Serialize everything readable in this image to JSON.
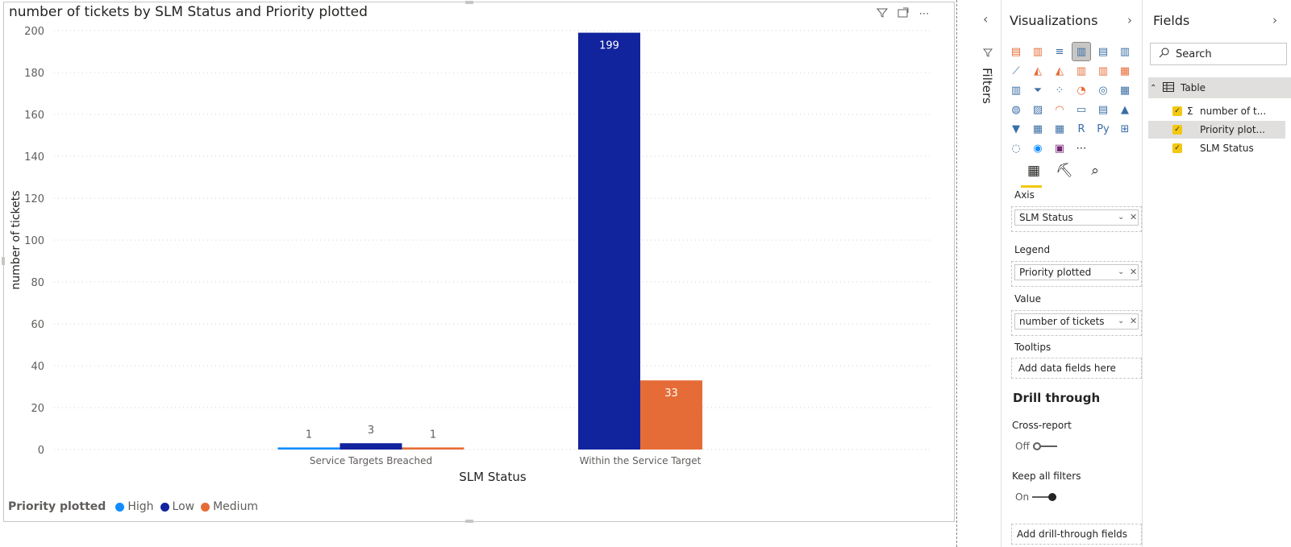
{
  "visual": {
    "title": "number of tickets by SLM Status and Priority plotted",
    "header_icons": [
      "filter-icon",
      "focus-mode-icon",
      "more-options-icon"
    ],
    "more_glyph": "⋯"
  },
  "chart_data": {
    "type": "bar",
    "title": "number of tickets by SLM Status and Priority plotted",
    "xlabel": "SLM Status",
    "ylabel": "number of tickets",
    "ylim": [
      0,
      200
    ],
    "yticks": [
      0,
      20,
      40,
      60,
      80,
      100,
      120,
      140,
      160,
      180,
      200
    ],
    "grid": true,
    "categories": [
      "Service Targets Breached",
      "Within the Service Target"
    ],
    "series": [
      {
        "name": "High",
        "color": "#118dff",
        "values": [
          1,
          0
        ]
      },
      {
        "name": "Low",
        "color": "#12239e",
        "values": [
          3,
          199
        ]
      },
      {
        "name": "Medium",
        "color": "#e66c37",
        "values": [
          1,
          33
        ]
      }
    ],
    "data_labels": [
      {
        "series": "High",
        "category": "Service Targets Breached",
        "label": "1"
      },
      {
        "series": "Low",
        "category": "Service Targets Breached",
        "label": "3"
      },
      {
        "series": "Medium",
        "category": "Service Targets Breached",
        "label": "1"
      },
      {
        "series": "Low",
        "category": "Within the Service Target",
        "label": "199"
      },
      {
        "series": "Medium",
        "category": "Within the Service Target",
        "label": "33"
      }
    ],
    "legend_title": "Priority plotted",
    "legend_position": "bottom-left"
  },
  "filters": {
    "label": "Filters",
    "collapse_glyph": "‹"
  },
  "visualizations": {
    "title": "Visualizations",
    "expand_glyph": "›",
    "icons": [
      {
        "name": "stacked-bar-chart-icon",
        "glyph": "▤",
        "color": "#e66c37"
      },
      {
        "name": "stacked-column-chart-icon",
        "glyph": "▥",
        "color": "#e66c37"
      },
      {
        "name": "clustered-bar-chart-icon",
        "glyph": "≡",
        "color": "#3a6ea5"
      },
      {
        "name": "clustered-column-chart-icon",
        "glyph": "▥",
        "color": "#3a6ea5",
        "selected": true
      },
      {
        "name": "100-stacked-bar-chart-icon",
        "glyph": "▤",
        "color": "#3a6ea5"
      },
      {
        "name": "100-stacked-column-chart-icon",
        "glyph": "▥",
        "color": "#3a6ea5"
      },
      {
        "name": "line-chart-icon",
        "glyph": "⟋",
        "color": "#3a6ea5"
      },
      {
        "name": "area-chart-icon",
        "glyph": "◭",
        "color": "#e66c37"
      },
      {
        "name": "stacked-area-chart-icon",
        "glyph": "◭",
        "color": "#e66c37"
      },
      {
        "name": "line-and-stacked-column-icon",
        "glyph": "▥",
        "color": "#e66c37"
      },
      {
        "name": "line-and-clustered-column-icon",
        "glyph": "▥",
        "color": "#e66c37"
      },
      {
        "name": "ribbon-chart-icon",
        "glyph": "▦",
        "color": "#e66c37"
      },
      {
        "name": "waterfall-chart-icon",
        "glyph": "▥",
        "color": "#3a6ea5"
      },
      {
        "name": "funnel-chart-icon",
        "glyph": "⏷",
        "color": "#3a6ea5"
      },
      {
        "name": "scatter-chart-icon",
        "glyph": "⁘",
        "color": "#3a6ea5"
      },
      {
        "name": "pie-chart-icon",
        "glyph": "◔",
        "color": "#e66c37"
      },
      {
        "name": "donut-chart-icon",
        "glyph": "◎",
        "color": "#3a6ea5"
      },
      {
        "name": "treemap-icon",
        "glyph": "▦",
        "color": "#3a6ea5"
      },
      {
        "name": "map-icon",
        "glyph": "◍",
        "color": "#3a6ea5"
      },
      {
        "name": "filled-map-icon",
        "glyph": "▨",
        "color": "#3a6ea5"
      },
      {
        "name": "gauge-icon",
        "glyph": "◠",
        "color": "#e66c37"
      },
      {
        "name": "card-icon",
        "glyph": "▭",
        "color": "#3a6ea5"
      },
      {
        "name": "multi-row-card-icon",
        "glyph": "▤",
        "color": "#3a6ea5"
      },
      {
        "name": "kpi-icon",
        "glyph": "▲",
        "color": "#3a6ea5"
      },
      {
        "name": "slicer-icon",
        "glyph": "▼",
        "color": "#3a6ea5"
      },
      {
        "name": "table-visual-icon",
        "glyph": "▦",
        "color": "#3a6ea5"
      },
      {
        "name": "matrix-icon",
        "glyph": "▦",
        "color": "#3a6ea5"
      },
      {
        "name": "r-visual-icon",
        "glyph": "R",
        "color": "#3a6ea5"
      },
      {
        "name": "python-visual-icon",
        "glyph": "Py",
        "color": "#3a6ea5"
      },
      {
        "name": "key-influencers-icon",
        "glyph": "⊞",
        "color": "#3a6ea5"
      },
      {
        "name": "qa-visual-icon",
        "glyph": "◌",
        "color": "#3a6ea5"
      },
      {
        "name": "arcgis-map-icon",
        "glyph": "◉",
        "color": "#118dff"
      },
      {
        "name": "power-apps-icon",
        "glyph": "▣",
        "color": "#742774"
      },
      {
        "name": "more-visuals-icon",
        "glyph": "⋯",
        "color": "#252423"
      }
    ],
    "tabs": [
      {
        "name": "fields-tab-icon",
        "glyph": "▦"
      },
      {
        "name": "format-tab-icon",
        "glyph": "⛏"
      },
      {
        "name": "analytics-tab-icon",
        "glyph": "⌕"
      }
    ],
    "wells": {
      "axis_label": "Axis",
      "axis_field": "SLM Status",
      "legend_label": "Legend",
      "legend_field": "Priority plotted",
      "value_label": "Value",
      "value_field": "number of tickets",
      "tooltips_label": "Tooltips",
      "tooltips_placeholder": "Add data fields here"
    },
    "drill": {
      "title": "Drill through",
      "cross_report_label": "Cross-report",
      "cross_report_state": "Off",
      "keep_filters_label": "Keep all filters",
      "keep_filters_state": "On",
      "placeholder": "Add drill-through fields here"
    },
    "chevron_glyph": "⌄",
    "remove_glyph": "✕"
  },
  "fields": {
    "title": "Fields",
    "expand_glyph": "›",
    "search_placeholder": "Search",
    "table": {
      "name": "Table",
      "collapse_glyph": "⌃"
    },
    "items": [
      {
        "prefix": "Σ",
        "label": "number of t..."
      },
      {
        "prefix": "",
        "label": "Priority plot..."
      },
      {
        "prefix": "",
        "label": "SLM Status"
      }
    ],
    "check_glyph": "✓"
  }
}
